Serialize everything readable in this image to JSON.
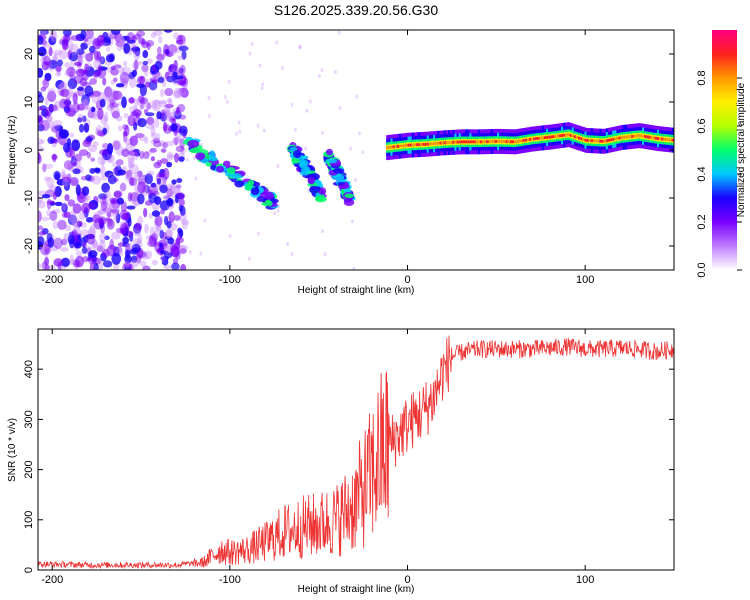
{
  "figure_title": "S126.2025.339.20.56.G30",
  "chart_data": [
    {
      "type": "heatmap",
      "title": "S126.2025.339.20.56.G30",
      "xlabel": "Height of straight line (km)",
      "ylabel": "Frequency (Hz)",
      "xlim": [
        -208,
        150
      ],
      "ylim": [
        -25,
        25
      ],
      "xticks": [
        -200,
        -100,
        0,
        100
      ],
      "yticks": [
        -20,
        -10,
        0,
        10,
        20
      ],
      "colorbar": {
        "label": "Normalized spectral amplitude",
        "range": [
          0,
          1
        ],
        "ticks": [
          "0.0",
          "0.2",
          "0.4",
          "0.6",
          "0.8"
        ],
        "tick_values": [
          0,
          0.2,
          0.4,
          0.6,
          0.8
        ],
        "colors": [
          "#ffffff",
          "#c07cff",
          "#7a00ff",
          "#1a00ff",
          "#00c8ff",
          "#00ff6a",
          "#b4ff00",
          "#fff000",
          "#ff9800",
          "#ff2020",
          "#ff0080"
        ]
      },
      "features": {
        "noise_region_km": [
          -208,
          -125
        ],
        "main_trace": {
          "x": [
            -12,
            0,
            10,
            20,
            30,
            40,
            50,
            60,
            70,
            80,
            90,
            100,
            110,
            120,
            130,
            140,
            150
          ],
          "y": [
            0.5,
            1.0,
            1.2,
            1.5,
            1.7,
            1.7,
            1.8,
            1.7,
            2.3,
            2.7,
            3.2,
            2.0,
            1.8,
            2.6,
            3.0,
            2.4,
            2.0
          ],
          "peak_amplitude": 0.85
        },
        "descending_streaks": [
          {
            "x": [
              -125,
              -95,
              -75
            ],
            "y": [
              2,
              -6,
              -11
            ]
          },
          {
            "x": [
              -65,
              -55,
              -48
            ],
            "y": [
              0,
              -5,
              -10
            ]
          },
          {
            "x": [
              -45,
              -38,
              -32
            ],
            "y": [
              -1,
              -6,
              -11
            ]
          }
        ]
      }
    },
    {
      "type": "line",
      "xlabel": "Height of straight line (km)",
      "ylabel": "SNR (10 * v/v)",
      "xlim": [
        -208,
        150
      ],
      "ylim": [
        0,
        480
      ],
      "xticks": [
        -200,
        -100,
        0,
        100
      ],
      "yticks": [
        0,
        100,
        200,
        300,
        400
      ],
      "series": [
        {
          "name": "SNR",
          "color": "#ee3333",
          "x": [
            -208,
            -180,
            -150,
            -130,
            -115,
            -105,
            -100,
            -90,
            -80,
            -70,
            -60,
            -50,
            -40,
            -30,
            -25,
            -20,
            -15,
            -10,
            -5,
            0,
            5,
            10,
            15,
            20,
            25,
            30,
            40,
            50,
            60,
            70,
            80,
            90,
            100,
            110,
            120,
            130,
            140,
            150
          ],
          "y": [
            12,
            10,
            10,
            10,
            15,
            40,
            35,
            40,
            55,
            75,
            85,
            90,
            100,
            130,
            160,
            190,
            230,
            250,
            270,
            290,
            305,
            320,
            345,
            395,
            425,
            433,
            440,
            440,
            440,
            440,
            442,
            445,
            440,
            440,
            442,
            440,
            435,
            440
          ]
        }
      ]
    }
  ]
}
